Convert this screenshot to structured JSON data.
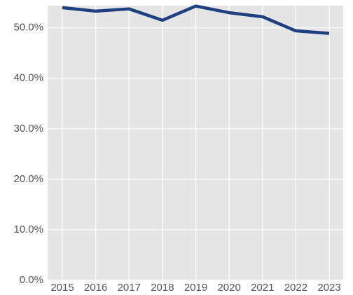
{
  "chart_data": {
    "type": "line",
    "categories": [
      "2015",
      "2016",
      "2017",
      "2018",
      "2019",
      "2020",
      "2021",
      "2022",
      "2023"
    ],
    "series": [
      {
        "color": "#1f3f80",
        "values": [
          54.0,
          53.3,
          53.75,
          51.5,
          54.3,
          53.0,
          52.2,
          49.4,
          48.9
        ]
      }
    ],
    "ylim": [
      0,
      54.4
    ],
    "yticks": [
      {
        "value": 0,
        "label": "0.0%"
      },
      {
        "value": 10,
        "label": "10.0%"
      },
      {
        "value": 20,
        "label": "20.0%"
      },
      {
        "value": 30,
        "label": "30.0%"
      },
      {
        "value": 40,
        "label": "40.0%"
      },
      {
        "value": 50,
        "label": "50.0%"
      }
    ],
    "grid": true
  }
}
